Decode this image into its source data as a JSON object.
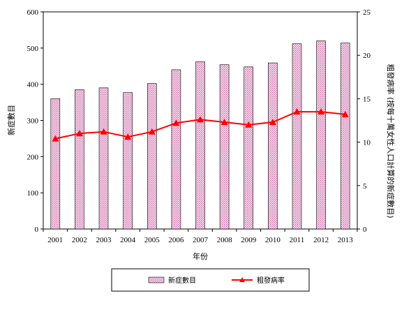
{
  "chart_data": {
    "type": "bar",
    "categories": [
      "2001",
      "2002",
      "2003",
      "2004",
      "2005",
      "2006",
      "2007",
      "2008",
      "2009",
      "2010",
      "2011",
      "2012",
      "2013"
    ],
    "series": [
      {
        "name": "新症數目",
        "type": "bar",
        "axis": "left",
        "values": [
          360,
          385,
          390,
          377,
          402,
          440,
          462,
          454,
          448,
          459,
          512,
          520,
          514
        ],
        "color": "#e6b8d8"
      },
      {
        "name": "粗發病率",
        "type": "line",
        "axis": "right",
        "values": [
          10.4,
          11.0,
          11.2,
          10.6,
          11.2,
          12.2,
          12.6,
          12.3,
          12.0,
          12.3,
          13.5,
          13.5,
          13.2
        ],
        "color": "#ff0000"
      }
    ],
    "xlabel": "年份",
    "ylabel": "新症數目",
    "y2label": "粗發病率 (按每十萬女性人口計算的新症數目)",
    "ylim": [
      0,
      600
    ],
    "y2lim": [
      0,
      25
    ],
    "yticks": [
      "0",
      "100",
      "200",
      "300",
      "400",
      "500",
      "600"
    ],
    "y2ticks": [
      "0",
      "5",
      "10",
      "15",
      "20",
      "25"
    ],
    "grid": false,
    "legend": "bottom"
  },
  "legend": {
    "bar_label": "新症數目",
    "line_label": "粗發病率"
  }
}
